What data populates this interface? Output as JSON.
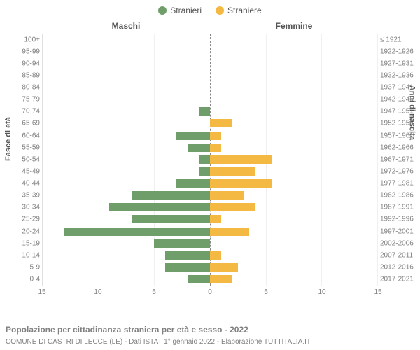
{
  "legend": {
    "male_label": "Stranieri",
    "female_label": "Straniere",
    "male_color": "#6f9e6a",
    "female_color": "#f4b942"
  },
  "panel_titles": {
    "left": "Maschi",
    "right": "Femmine"
  },
  "axis_titles": {
    "left": "Fasce di età",
    "right": "Anni di nascita"
  },
  "x_axis": {
    "max": 15,
    "ticks": [
      15,
      10,
      5,
      0,
      5,
      10,
      15
    ]
  },
  "colors": {
    "bar_male": "#6f9e6a",
    "bar_female": "#f4b942",
    "grid": "#f0f0f0",
    "center_line": "#888888",
    "tick_text": "#808080",
    "background": "#ffffff"
  },
  "rows": [
    {
      "age": "100+",
      "birth": "≤ 1921",
      "m": 0,
      "f": 0
    },
    {
      "age": "95-99",
      "birth": "1922-1926",
      "m": 0,
      "f": 0
    },
    {
      "age": "90-94",
      "birth": "1927-1931",
      "m": 0,
      "f": 0
    },
    {
      "age": "85-89",
      "birth": "1932-1936",
      "m": 0,
      "f": 0
    },
    {
      "age": "80-84",
      "birth": "1937-1941",
      "m": 0,
      "f": 0
    },
    {
      "age": "75-79",
      "birth": "1942-1946",
      "m": 0,
      "f": 0
    },
    {
      "age": "70-74",
      "birth": "1947-1951",
      "m": 1,
      "f": 0
    },
    {
      "age": "65-69",
      "birth": "1952-1956",
      "m": 0,
      "f": 2
    },
    {
      "age": "60-64",
      "birth": "1957-1961",
      "m": 3,
      "f": 1
    },
    {
      "age": "55-59",
      "birth": "1962-1966",
      "m": 2,
      "f": 1
    },
    {
      "age": "50-54",
      "birth": "1967-1971",
      "m": 1,
      "f": 5.5
    },
    {
      "age": "45-49",
      "birth": "1972-1976",
      "m": 1,
      "f": 4
    },
    {
      "age": "40-44",
      "birth": "1977-1981",
      "m": 3,
      "f": 5.5
    },
    {
      "age": "35-39",
      "birth": "1982-1986",
      "m": 7,
      "f": 3
    },
    {
      "age": "30-34",
      "birth": "1987-1991",
      "m": 9,
      "f": 4
    },
    {
      "age": "25-29",
      "birth": "1992-1996",
      "m": 7,
      "f": 1
    },
    {
      "age": "20-24",
      "birth": "1997-2001",
      "m": 13,
      "f": 3.5
    },
    {
      "age": "15-19",
      "birth": "2002-2006",
      "m": 5,
      "f": 0
    },
    {
      "age": "10-14",
      "birth": "2007-2011",
      "m": 4,
      "f": 1
    },
    {
      "age": "5-9",
      "birth": "2012-2016",
      "m": 4,
      "f": 2.5
    },
    {
      "age": "0-4",
      "birth": "2017-2021",
      "m": 2,
      "f": 2
    }
  ],
  "footer": {
    "title": "Popolazione per cittadinanza straniera per età e sesso - 2022",
    "subtitle": "COMUNE DI CASTRI DI LECCE (LE) - Dati ISTAT 1° gennaio 2022 - Elaborazione TUTTITALIA.IT"
  }
}
